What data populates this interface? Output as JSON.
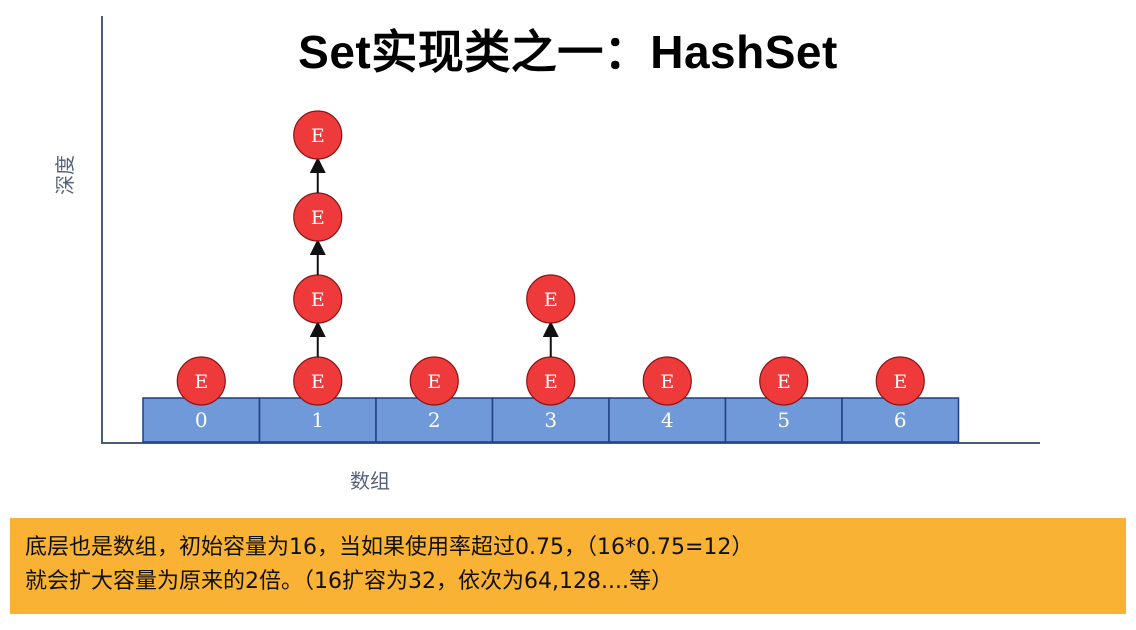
{
  "slide": {
    "title": "Set实现类之一：HashSet"
  },
  "diagram": {
    "y_axis_label": "深度",
    "x_axis_label": "数组",
    "bucket_labels": [
      "0",
      "1",
      "2",
      "3",
      "4",
      "5",
      "6"
    ],
    "chain_lengths": [
      1,
      4,
      1,
      2,
      1,
      1,
      1
    ],
    "node_label": "E",
    "colors": {
      "bucket_fill": "#6f99d8",
      "bucket_stroke": "#1f3f86",
      "node_fill": "#ee3a3a",
      "node_stroke": "#8a1414",
      "node_text": "#ffffff",
      "axis": "#4a5a78",
      "arrow": "#111111"
    }
  },
  "caption": {
    "line1": "底层也是数组，初始容量为16，当如果使用率超过0.75，（16*0.75=12）",
    "line2": "就会扩大容量为原来的2倍。（16扩容为32，依次为64,128....等）",
    "background": "#f9b233"
  }
}
